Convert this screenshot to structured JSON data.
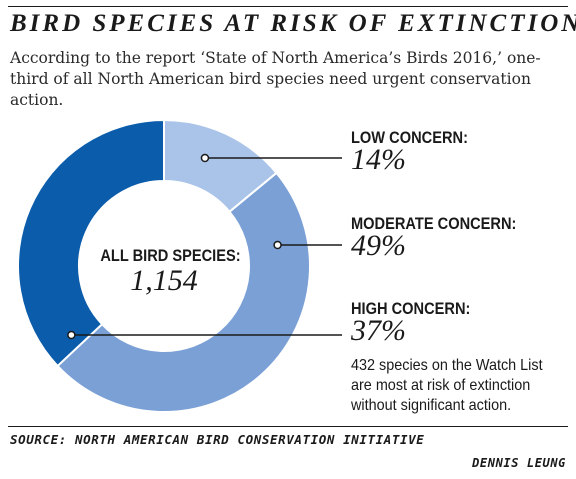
{
  "header": {
    "title": "BIRD SPECIES AT RISK OF EXTINCTION",
    "subtitle": "According to the report ‘State of North America’s Birds 2016,’ one-third of all North American bird species need urgent conservation action."
  },
  "chart_data": {
    "type": "pie",
    "center_label": "ALL BIRD SPECIES:",
    "center_value": "1,154",
    "slices": [
      {
        "label": "LOW CONCERN:",
        "value": 14,
        "display": "14%",
        "color": "#a9c4e8"
      },
      {
        "label": "MODERATE CONCERN:",
        "value": 49,
        "display": "49%",
        "color": "#7aa0d6"
      },
      {
        "label": "HIGH CONCERN:",
        "value": 37,
        "display": "37%",
        "color": "#0b5cab"
      }
    ],
    "note": "432 species on the Watch List are most at risk of extinction without significant action."
  },
  "footer": {
    "source": "SOURCE: NORTH AMERICAN BIRD CONSERVATION INITIATIVE",
    "credit": "DENNIS LEUNG"
  }
}
